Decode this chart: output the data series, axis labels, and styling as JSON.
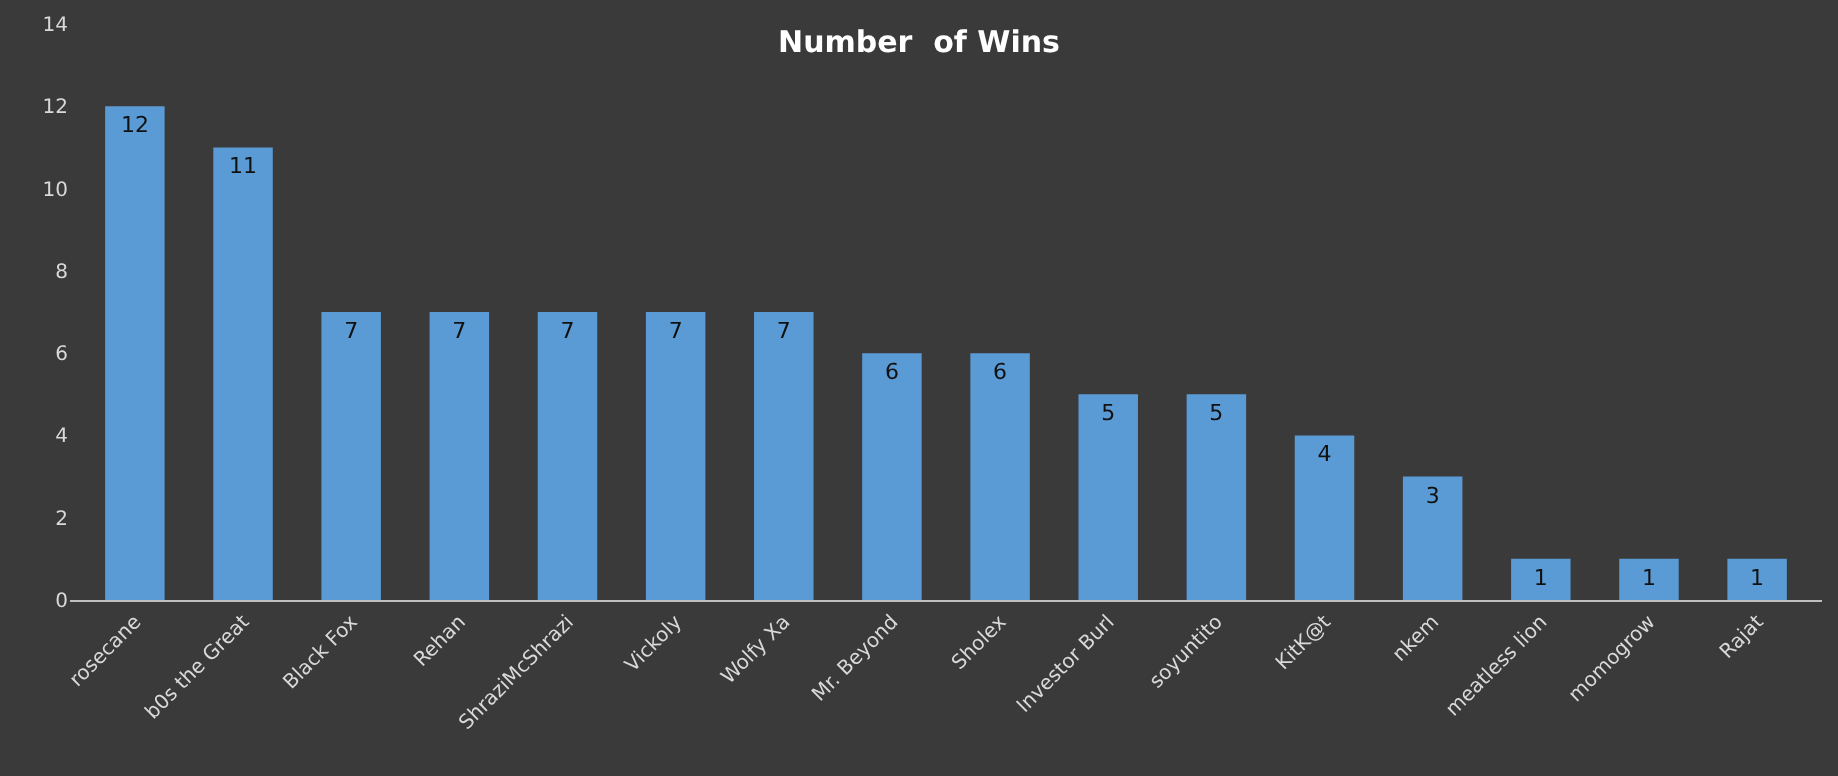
{
  "chart_data": {
    "type": "bar",
    "title": "Number  of Wins",
    "categories": [
      "rosecane",
      "b0s the Great",
      "Black Fox",
      "Rehan",
      "ShraziMcShrazi",
      "Vickoly",
      "Wolfy Xa",
      "Mr. Beyond",
      "Sholex",
      "Investor Burl",
      "soyuntito",
      "KitK@t",
      "nkem",
      "meatless lion",
      "momogrow",
      "Rajat"
    ],
    "values": [
      12,
      11,
      7,
      7,
      7,
      7,
      7,
      6,
      6,
      5,
      5,
      4,
      3,
      1,
      1,
      1
    ],
    "color": "#5b9bd5",
    "ylim": [
      0,
      14
    ],
    "yticks": [
      0,
      2,
      4,
      6,
      8,
      10,
      12,
      14
    ],
    "data_labels": true
  }
}
